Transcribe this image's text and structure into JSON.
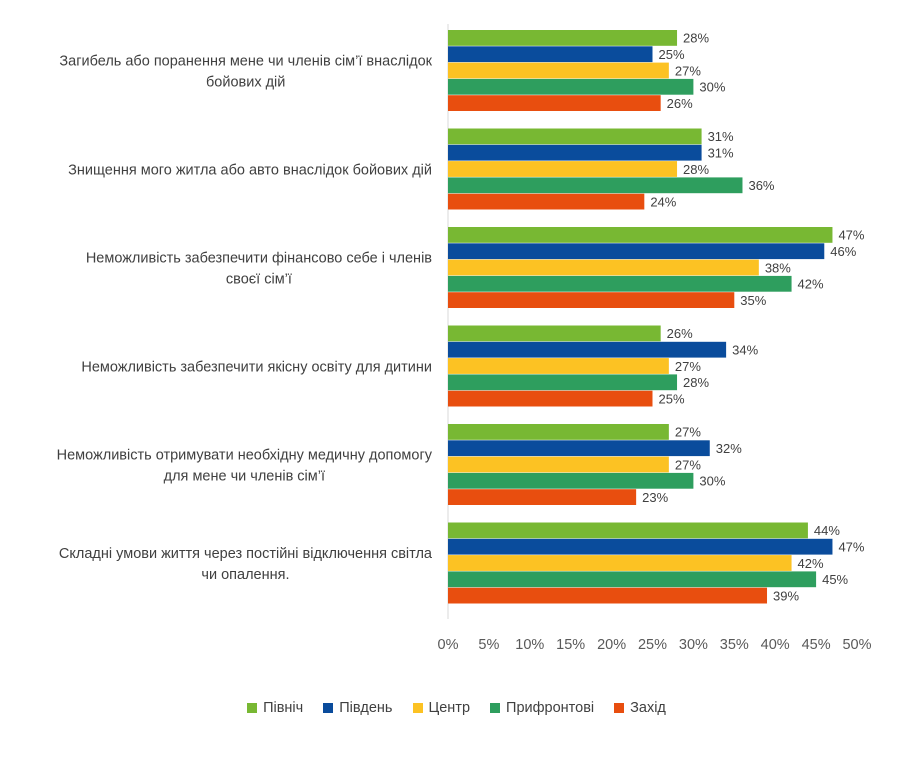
{
  "chart_data": {
    "type": "bar",
    "orientation": "horizontal",
    "categories": [
      [
        "Загибель або поранення мене чи членів сім’ї внаслідок",
        "бойових дій"
      ],
      [
        "Знищення мого житла або авто внаслідок бойових дій"
      ],
      [
        "Неможливість забезпечити фінансово себе і членів",
        "своєї сім’ї"
      ],
      [
        "Неможливість забезпечити якісну освіту для  дитини"
      ],
      [
        "Неможливість отримувати необхідну медичну допомогу",
        "для мене чи членів сім’ї"
      ],
      [
        "Складні умови життя через постійні відключення світла",
        "чи опалення."
      ]
    ],
    "series": [
      {
        "name": "Північ",
        "color": "#78B833",
        "values": [
          28,
          31,
          47,
          26,
          27,
          44
        ],
        "labels": [
          "28%",
          "31%",
          "47%",
          "26%",
          "27%",
          "44%"
        ]
      },
      {
        "name": "Південь",
        "color": "#0A4C9C",
        "values": [
          25,
          31,
          46,
          34,
          32,
          47
        ],
        "labels": [
          "25%",
          "31%",
          "46%",
          "34%",
          "32%",
          "47%"
        ]
      },
      {
        "name": "Центр",
        "color": "#FCC223",
        "values": [
          27,
          28,
          38,
          27,
          27,
          42
        ],
        "labels": [
          "27%",
          "28%",
          "38%",
          "27%",
          "27%",
          "42%"
        ]
      },
      {
        "name": "Прифронтові",
        "color": "#2E9E5E",
        "values": [
          30,
          36,
          42,
          28,
          30,
          45
        ],
        "labels": [
          "30%",
          "36%",
          "42%",
          "28%",
          "30%",
          "45%"
        ]
      },
      {
        "name": "Захід",
        "color": "#E84E0F",
        "values": [
          26,
          24,
          35,
          25,
          23,
          39
        ],
        "labels": [
          "26%",
          "24%",
          "35%",
          "25%",
          "23%",
          "39%"
        ]
      }
    ],
    "xlim": [
      0,
      50
    ],
    "xticks": [
      0,
      5,
      10,
      15,
      20,
      25,
      30,
      35,
      40,
      45,
      50
    ],
    "xtick_labels": [
      "0%",
      "5%",
      "10%",
      "15%",
      "20%",
      "25%",
      "30%",
      "35%",
      "40%",
      "45%",
      "50%"
    ],
    "legend_position": "bottom",
    "grid": false
  }
}
